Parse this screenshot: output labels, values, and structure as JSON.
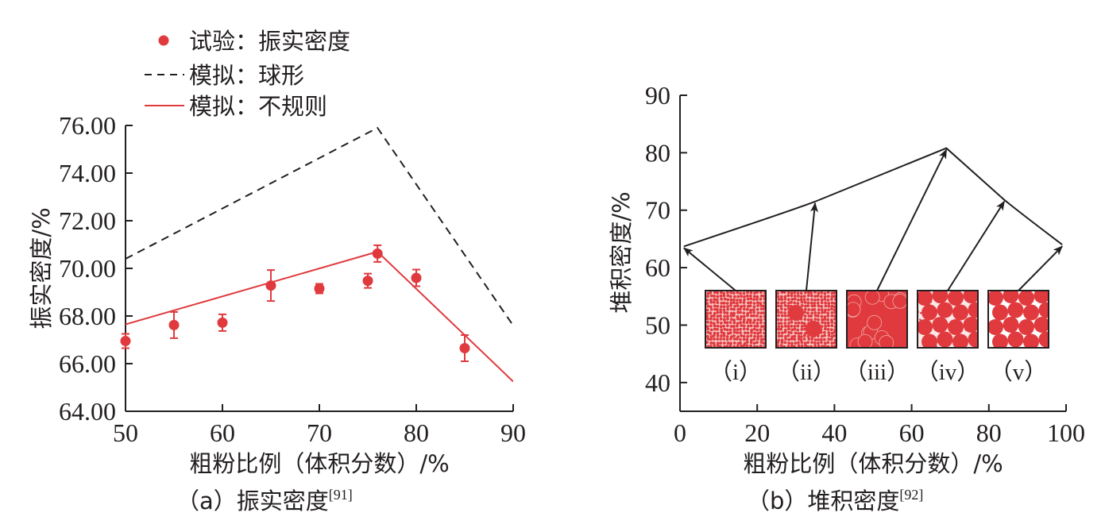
{
  "chart_data": [
    {
      "panel": "a",
      "type": "line",
      "caption": "（a）振实密度",
      "caption_ref": "[91]",
      "xlabel": "粗粉比例（体积分数）/%",
      "ylabel": "振实密度/%",
      "xlim": [
        50,
        90
      ],
      "ylim": [
        64,
        76
      ],
      "xticks": [
        "50",
        "60",
        "70",
        "80",
        "90"
      ],
      "yticks": [
        "64.00",
        "66.00",
        "68.00",
        "70.00",
        "72.00",
        "74.00",
        "76.00"
      ],
      "grid": false,
      "legend_position": "top-left",
      "series": [
        {
          "name": "试验：振实密度",
          "style": "scatter",
          "color": "#e03a3e",
          "x": [
            50,
            55,
            60,
            65,
            70,
            75,
            76,
            80,
            85
          ],
          "y": [
            66.95,
            67.62,
            67.72,
            69.28,
            69.15,
            69.48,
            70.62,
            69.6,
            66.65
          ],
          "err": [
            0.3,
            0.55,
            0.35,
            0.65,
            0.2,
            0.3,
            0.35,
            0.35,
            0.55
          ]
        },
        {
          "name": "模拟：球形",
          "style": "dashed",
          "color": "#231f20",
          "x": [
            50,
            76,
            90
          ],
          "y": [
            70.4,
            75.9,
            67.6
          ]
        },
        {
          "name": "模拟：不规则",
          "style": "solid",
          "color": "#e03a3e",
          "x": [
            50,
            76,
            90
          ],
          "y": [
            67.65,
            70.7,
            65.25
          ]
        }
      ]
    },
    {
      "panel": "b",
      "type": "line",
      "caption": "（b）堆积密度",
      "caption_ref": "[92]",
      "xlabel": "粗粉比例（体积分数）/%",
      "ylabel": "堆积密度/%",
      "xlim": [
        0,
        100
      ],
      "ylim": [
        35,
        90
      ],
      "xticks": [
        "0",
        "20",
        "40",
        "60",
        "80",
        "100"
      ],
      "yticks": [
        "40",
        "50",
        "60",
        "70",
        "80",
        "90"
      ],
      "grid": false,
      "series": [
        {
          "style": "solid",
          "color": "#231f20",
          "x": [
            1,
            35,
            69,
            84,
            99
          ],
          "y": [
            63.7,
            71.5,
            80.8,
            71.8,
            64.0
          ]
        }
      ],
      "insets": [
        {
          "label": "（i）",
          "type": "fine",
          "arrow_to": {
            "x": 1,
            "y": 63.7
          }
        },
        {
          "label": "（ii）",
          "type": "fine-with-coarse",
          "arrow_to": {
            "x": 35,
            "y": 71.5
          }
        },
        {
          "label": "（iii）",
          "type": "mixed",
          "arrow_to": {
            "x": 69,
            "y": 80.8
          }
        },
        {
          "label": "（iv）",
          "type": "coarse-with-fine",
          "arrow_to": {
            "x": 84,
            "y": 71.8
          }
        },
        {
          "label": "（v）",
          "type": "coarse",
          "arrow_to": {
            "x": 99,
            "y": 64.0
          }
        }
      ]
    }
  ]
}
